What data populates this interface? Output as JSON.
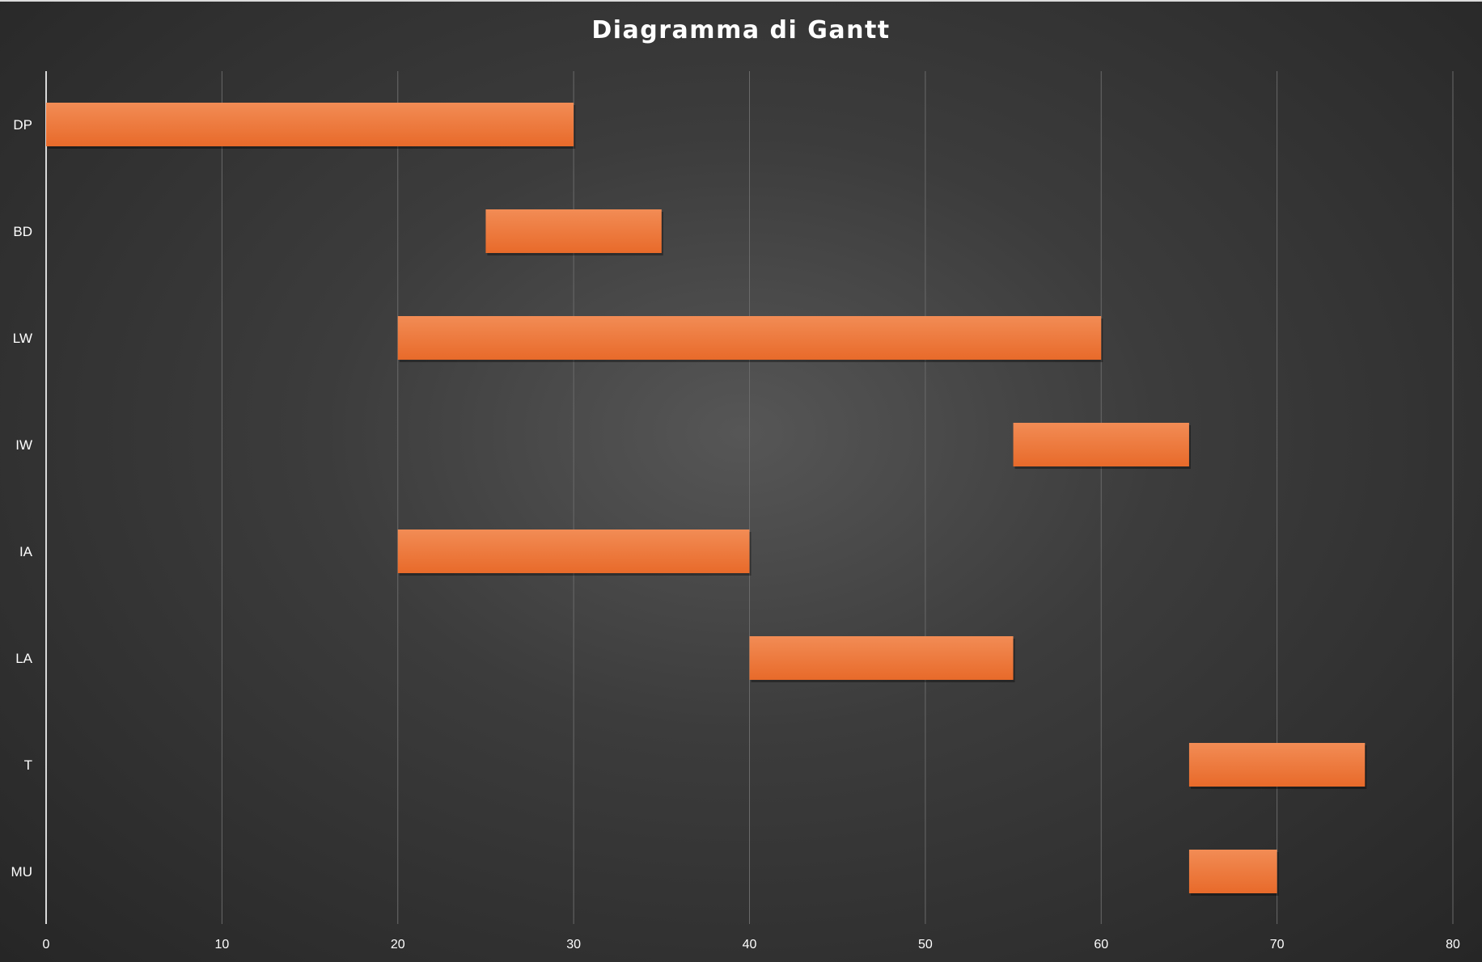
{
  "chart_data": {
    "type": "bar",
    "orientation": "horizontal-gantt",
    "title": "Diagramma di Gantt",
    "xlabel": "",
    "ylabel": "",
    "xlim": [
      0,
      80
    ],
    "x_ticks": [
      0,
      10,
      20,
      30,
      40,
      50,
      60,
      70,
      80
    ],
    "categories": [
      "DP",
      "BD",
      "LW",
      "IW",
      "IA",
      "LA",
      "T",
      "MU"
    ],
    "tasks": [
      {
        "label": "DP",
        "start": 0,
        "end": 30
      },
      {
        "label": "BD",
        "start": 25,
        "end": 35
      },
      {
        "label": "LW",
        "start": 20,
        "end": 60
      },
      {
        "label": "IW",
        "start": 55,
        "end": 65
      },
      {
        "label": "IA",
        "start": 20,
        "end": 40
      },
      {
        "label": "LA",
        "start": 40,
        "end": 55
      },
      {
        "label": "T",
        "start": 65,
        "end": 75
      },
      {
        "label": "MU",
        "start": 65,
        "end": 70
      }
    ],
    "grid": true,
    "legend": "none",
    "bar_color_top": "#f28c55",
    "bar_color_bottom": "#e86a2a",
    "background_center": "#565656",
    "background_edge": "#262626"
  }
}
